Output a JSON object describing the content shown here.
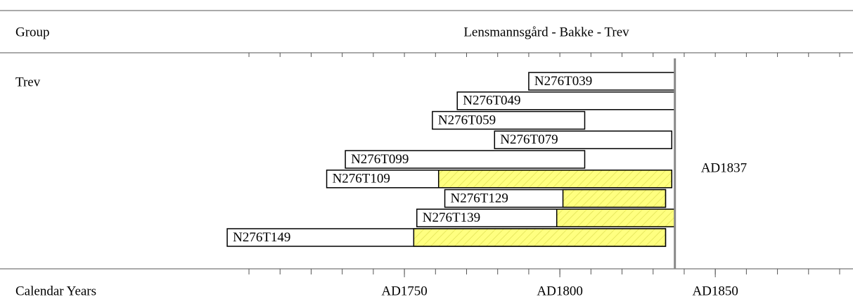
{
  "chart_data": {
    "type": "range_bar",
    "title": "Lensmannsgård - Bakke -  Trev",
    "group_header": "Group",
    "group": "Trev",
    "x_label": "Calendar Years",
    "xlim": [
      1650,
      1890
    ],
    "xticks": [
      {
        "value": 1750,
        "label": "AD1750"
      },
      {
        "value": 1800,
        "label": "AD1800"
      },
      {
        "value": 1850,
        "label": "AD1850"
      }
    ],
    "minor_ticks": [
      1700,
      1710,
      1720,
      1730,
      1740,
      1750,
      1760,
      1770,
      1780,
      1790,
      1800,
      1810,
      1820,
      1830,
      1840,
      1850,
      1860,
      1870,
      1880,
      1890
    ],
    "sapwood_color": "#ffff80",
    "series": [
      {
        "name": "N276T039",
        "start": 1790,
        "end": 1837,
        "sapwood_start": null
      },
      {
        "name": "N276T049",
        "start": 1767,
        "end": 1837,
        "sapwood_start": null
      },
      {
        "name": "N276T059",
        "start": 1759,
        "end": 1808,
        "sapwood_start": null
      },
      {
        "name": "N276T079",
        "start": 1779,
        "end": 1836,
        "sapwood_start": null
      },
      {
        "name": "N276T099",
        "start": 1731,
        "end": 1808,
        "sapwood_start": null
      },
      {
        "name": "N276T109",
        "start": 1725,
        "end": 1836,
        "sapwood_start": 1761
      },
      {
        "name": "N276T129",
        "start": 1763,
        "end": 1834,
        "sapwood_start": 1801
      },
      {
        "name": "N276T139",
        "start": 1754,
        "end": 1837,
        "sapwood_start": 1799
      },
      {
        "name": "N276T149",
        "start": 1693,
        "end": 1834,
        "sapwood_start": 1753
      }
    ],
    "felling_line": {
      "value": 1837,
      "label": "AD1837"
    }
  }
}
